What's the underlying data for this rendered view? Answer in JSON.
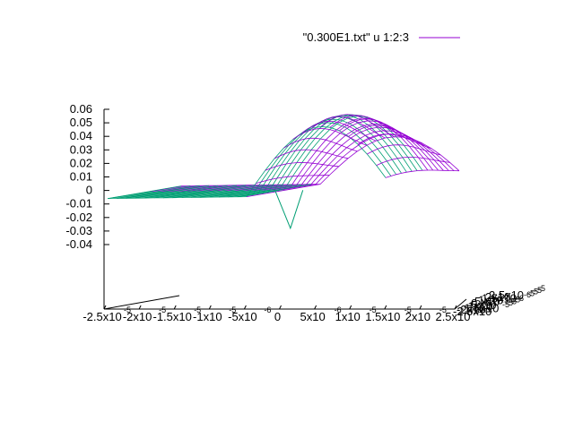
{
  "chart_data": {
    "type": "surface",
    "title": "",
    "legend": {
      "label": "\"0.300E1.txt\" u 1:2:3",
      "color": "#9400d3",
      "position": "top-right"
    },
    "colors": {
      "top": "#9400d3",
      "bottom": "#009e73"
    },
    "z_axis": {
      "ticks": [
        "0.06",
        "0.05",
        "0.04",
        "0.03",
        "0.02",
        "0.01",
        "0",
        "-0.01",
        "-0.02",
        "-0.03",
        "-0.04"
      ],
      "range": [
        -0.04,
        0.06
      ]
    },
    "x_axis": {
      "ticks": [
        "-2.5x10",
        "-2x10",
        "-1.5x10",
        "-1x10",
        "-5x10",
        "0",
        "5x10",
        "1x10",
        "1.5x10",
        "2x10",
        "2.5x10"
      ],
      "tick_exponents": [
        "-5",
        "-5",
        "-5",
        "-5",
        "-6",
        "",
        "-6",
        "-5",
        "-5",
        "-5",
        "-5"
      ],
      "range": [
        -2.5e-05,
        2.5e-05
      ]
    },
    "y_axis": {
      "ticks": [
        "-2.5x10",
        "-2x10",
        "-1.5x10",
        "-1x10",
        "-5x10",
        "0",
        "5x10",
        "1x10",
        "1.5x10",
        "2x10",
        "2.5x10"
      ],
      "tick_exponents": [
        "-5",
        "-5",
        "-5",
        "-5",
        "-6",
        "",
        "-6",
        "-5",
        "-5",
        "-5",
        "-5"
      ],
      "range": [
        -2.5e-05,
        2.5e-05
      ]
    },
    "surface": {
      "description_values": {
        "flat_level": 0.0,
        "peak_value": 0.057,
        "peak_x": 1.25e-05,
        "hump_x_range": [
          0.0,
          2.5e-05
        ],
        "spike_min": -0.028
      }
    }
  }
}
